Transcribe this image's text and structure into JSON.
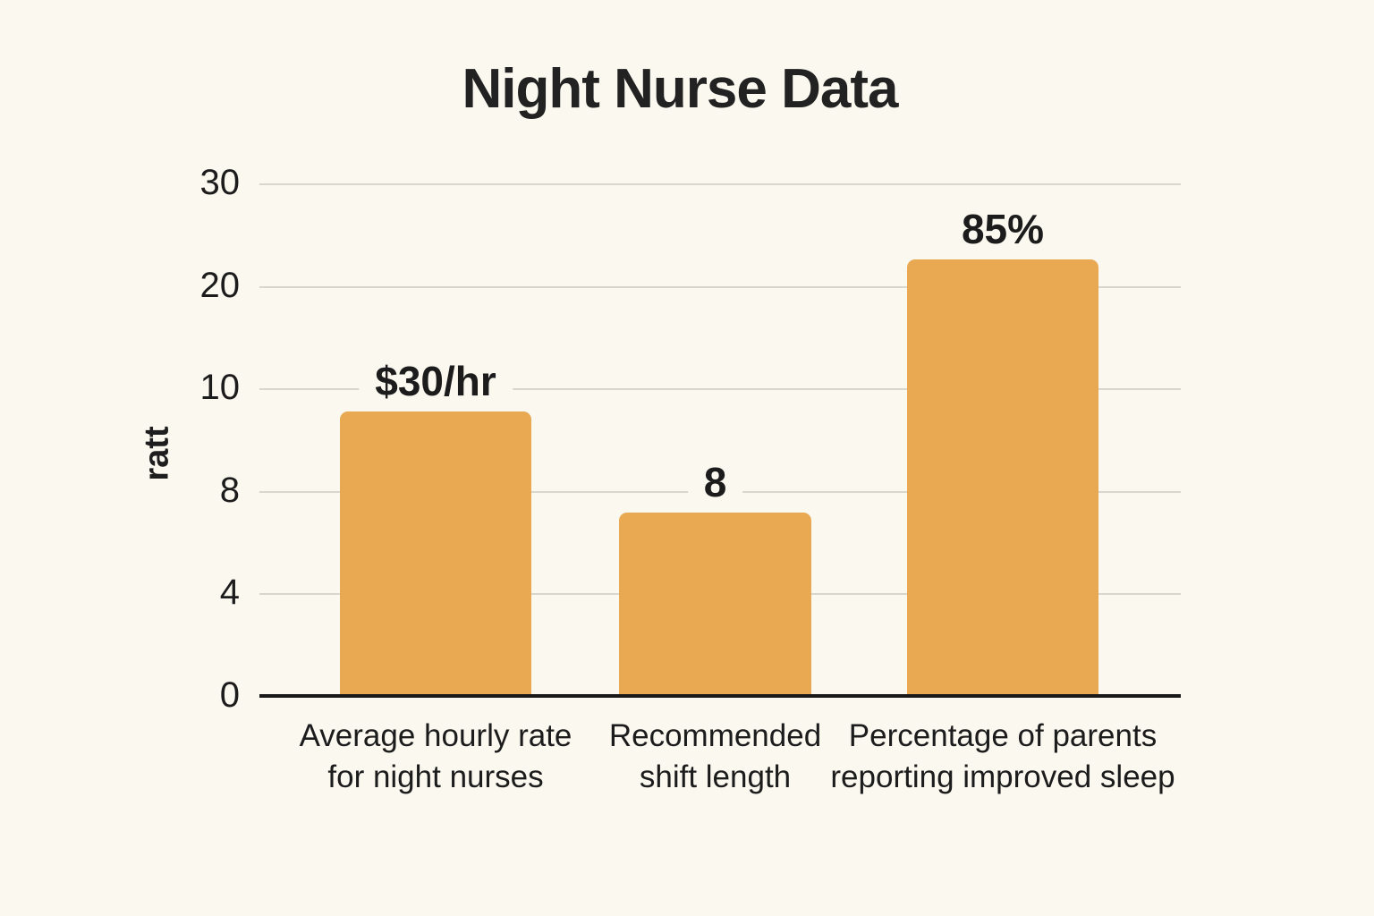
{
  "chart_data": {
    "type": "bar",
    "title": "Night Nurse Data",
    "xlabel": "",
    "ylabel": "ratt",
    "categories": [
      "Average hourly rate\nfor night nurses",
      "Recommended\nshift length",
      "Percentage of parents\nreporting improved sleep"
    ],
    "series": [
      {
        "name": "ratt",
        "values": [
          30,
          8,
          85
        ]
      }
    ],
    "bar_value_labels": [
      "$30/hr",
      "8",
      "85%"
    ],
    "y_tick_labels": [
      "30",
      "20",
      "10",
      "8",
      "4",
      "0"
    ],
    "axis_note": "y ticks are evenly spaced but non-linear (30,20,10,8,4,0)",
    "bar_height_fractions": [
      0.555,
      0.358,
      0.852
    ],
    "grid": true,
    "legend": false,
    "colors": {
      "bar": "#E9A952",
      "background": "#FBF8F0",
      "text": "#1c1c1c",
      "gridline": "#D9D6CE",
      "axis": "#191919"
    }
  }
}
